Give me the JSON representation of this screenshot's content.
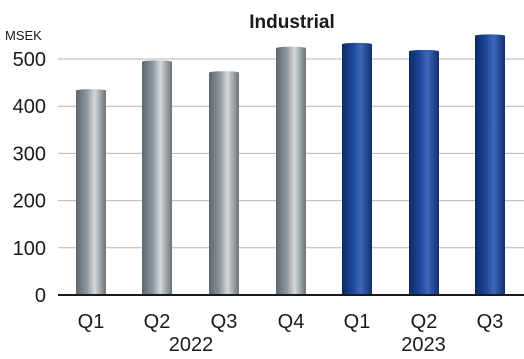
{
  "chart_data": {
    "type": "bar",
    "title": "Industrial",
    "unit_label": "MSEK",
    "xlabel": "",
    "ylabel": "",
    "ylim": [
      0,
      550
    ],
    "yticks": [
      0,
      100,
      200,
      300,
      400,
      500
    ],
    "grid": true,
    "legend": "none",
    "categories": [
      "Q1",
      "Q2",
      "Q3",
      "Q4",
      "Q1",
      "Q2",
      "Q3"
    ],
    "groups": [
      {
        "label": "2022",
        "count": 4
      },
      {
        "label": "2023",
        "count": 3
      }
    ],
    "values": [
      433,
      494,
      471,
      523,
      531,
      516,
      549
    ],
    "colors": {
      "2022_bar": "#7d868c",
      "2023_bar": "#1a3f8a",
      "grid": "#b5b5b5",
      "axis": "#1a1a1a"
    }
  }
}
